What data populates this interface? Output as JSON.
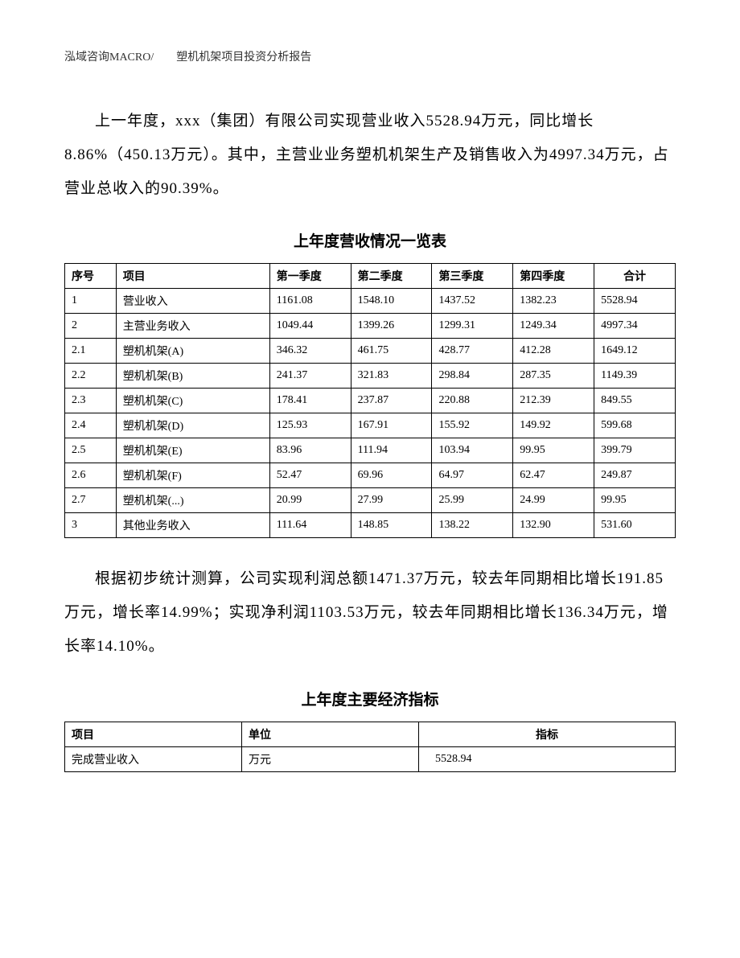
{
  "header": {
    "text": "泓域咨询MACRO/　　塑机机架项目投资分析报告"
  },
  "paragraph1": "上一年度，xxx（集团）有限公司实现营业收入5528.94万元，同比增长8.86%（450.13万元）。其中，主营业业务塑机机架生产及销售收入为4997.34万元，占营业总收入的90.39%。",
  "table1": {
    "title": "上年度营收情况一览表",
    "headers": {
      "seq": "序号",
      "item": "项目",
      "q1": "第一季度",
      "q2": "第二季度",
      "q3": "第三季度",
      "q4": "第四季度",
      "total": "合计"
    },
    "rows": [
      {
        "seq": "1",
        "item": "营业收入",
        "q1": "1161.08",
        "q2": "1548.10",
        "q3": "1437.52",
        "q4": "1382.23",
        "total": "5528.94"
      },
      {
        "seq": "2",
        "item": "主营业务收入",
        "q1": "1049.44",
        "q2": "1399.26",
        "q3": "1299.31",
        "q4": "1249.34",
        "total": "4997.34"
      },
      {
        "seq": "2.1",
        "item": "塑机机架(A)",
        "q1": "346.32",
        "q2": "461.75",
        "q3": "428.77",
        "q4": "412.28",
        "total": "1649.12"
      },
      {
        "seq": "2.2",
        "item": "塑机机架(B)",
        "q1": "241.37",
        "q2": "321.83",
        "q3": "298.84",
        "q4": "287.35",
        "total": "1149.39"
      },
      {
        "seq": "2.3",
        "item": "塑机机架(C)",
        "q1": "178.41",
        "q2": "237.87",
        "q3": "220.88",
        "q4": "212.39",
        "total": "849.55"
      },
      {
        "seq": "2.4",
        "item": "塑机机架(D)",
        "q1": "125.93",
        "q2": "167.91",
        "q3": "155.92",
        "q4": "149.92",
        "total": "599.68"
      },
      {
        "seq": "2.5",
        "item": "塑机机架(E)",
        "q1": "83.96",
        "q2": "111.94",
        "q3": "103.94",
        "q4": "99.95",
        "total": "399.79"
      },
      {
        "seq": "2.6",
        "item": "塑机机架(F)",
        "q1": "52.47",
        "q2": "69.96",
        "q3": "64.97",
        "q4": "62.47",
        "total": "249.87"
      },
      {
        "seq": "2.7",
        "item": "塑机机架(...)",
        "q1": "20.99",
        "q2": "27.99",
        "q3": "25.99",
        "q4": "24.99",
        "total": "99.95"
      },
      {
        "seq": "3",
        "item": "其他业务收入",
        "q1": "111.64",
        "q2": "148.85",
        "q3": "138.22",
        "q4": "132.90",
        "total": "531.60"
      }
    ]
  },
  "paragraph2": "根据初步统计测算，公司实现利润总额1471.37万元，较去年同期相比增长191.85万元，增长率14.99%；实现净利润1103.53万元，较去年同期相比增长136.34万元，增长率14.10%。",
  "table2": {
    "title": "上年度主要经济指标",
    "headers": {
      "item": "项目",
      "unit": "单位",
      "indicator": "指标"
    },
    "rows": [
      {
        "item": "完成营业收入",
        "unit": "万元",
        "indicator": "5528.94"
      }
    ]
  }
}
